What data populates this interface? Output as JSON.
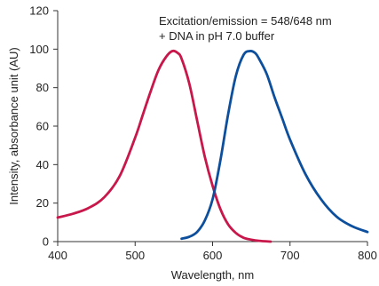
{
  "chart_data": {
    "type": "line",
    "title": "",
    "xlabel": "Wavelength, nm",
    "ylabel": "Intensity, absorbance unit (AU)",
    "xlim": [
      400,
      800
    ],
    "ylim": [
      0,
      120
    ],
    "xticks": [
      400,
      500,
      600,
      700,
      800
    ],
    "yticks": [
      0,
      20,
      40,
      60,
      80,
      100,
      120
    ],
    "grid": false,
    "annotations": [
      "Excitation/emission = 548/648 nm",
      "+ DNA in pH 7.0 buffer"
    ],
    "series": [
      {
        "color": "#c8174a",
        "x": [
          400,
          420,
          440,
          460,
          480,
          500,
          510,
          520,
          530,
          540,
          548,
          555,
          560,
          570,
          580,
          590,
          600,
          610,
          620,
          630,
          640,
          650,
          660,
          675
        ],
        "y": [
          12.5,
          14.5,
          17.5,
          23,
          34,
          54,
          66,
          78,
          89,
          96,
          99,
          98,
          95,
          82,
          63,
          44,
          29,
          17,
          9,
          4.5,
          2,
          1,
          0.4,
          0
        ]
      },
      {
        "color": "#0d4f9c",
        "x": [
          560,
          570,
          580,
          590,
          600,
          610,
          620,
          630,
          640,
          648,
          655,
          660,
          670,
          680,
          690,
          700,
          720,
          740,
          760,
          780,
          800
        ],
        "y": [
          1.5,
          2.5,
          5,
          11,
          22,
          42,
          66,
          86,
          97,
          99,
          98,
          95,
          87,
          75,
          64,
          53,
          35,
          22,
          13,
          8,
          5
        ]
      }
    ]
  }
}
